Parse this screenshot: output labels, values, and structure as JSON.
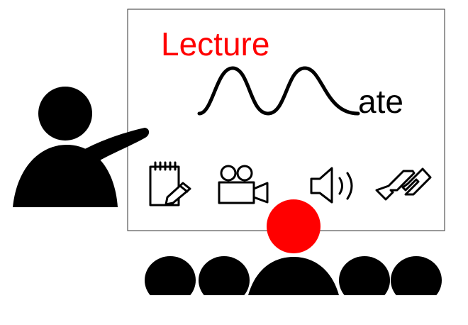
{
  "logo": {
    "line1": "Lecture",
    "line2_glyph": "M",
    "line2_suffix": "ate"
  },
  "colors": {
    "accent": "#ff0000",
    "ink": "#000000",
    "board_border": "#333333",
    "background": "#ffffff"
  },
  "icons": [
    "notepad-pencil-icon",
    "video-camera-icon",
    "speaker-volume-icon",
    "link-icon"
  ]
}
